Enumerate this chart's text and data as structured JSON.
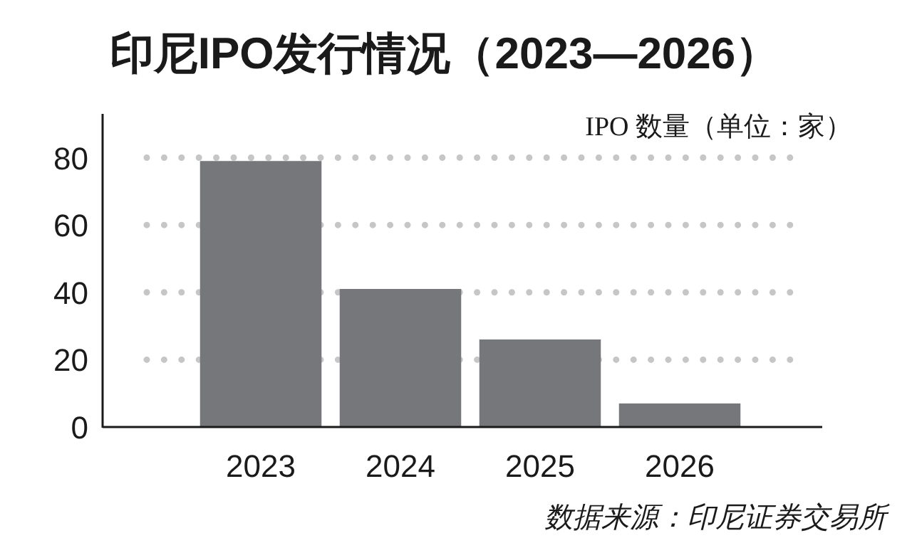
{
  "chart_data": {
    "type": "bar",
    "title": "印尼IPO发行情况（2023—2026）",
    "ylabel": "IPO 数量（单位：家）",
    "categories": [
      "2023",
      "2024",
      "2025",
      "2026"
    ],
    "values": [
      79,
      41,
      26,
      7
    ],
    "color": "#76777b",
    "ylim": [
      0,
      93
    ],
    "yticks": [
      0,
      20,
      40,
      60,
      80
    ],
    "grid": "y",
    "annotations": [
      "数据来源：印尼证券交易所"
    ]
  }
}
